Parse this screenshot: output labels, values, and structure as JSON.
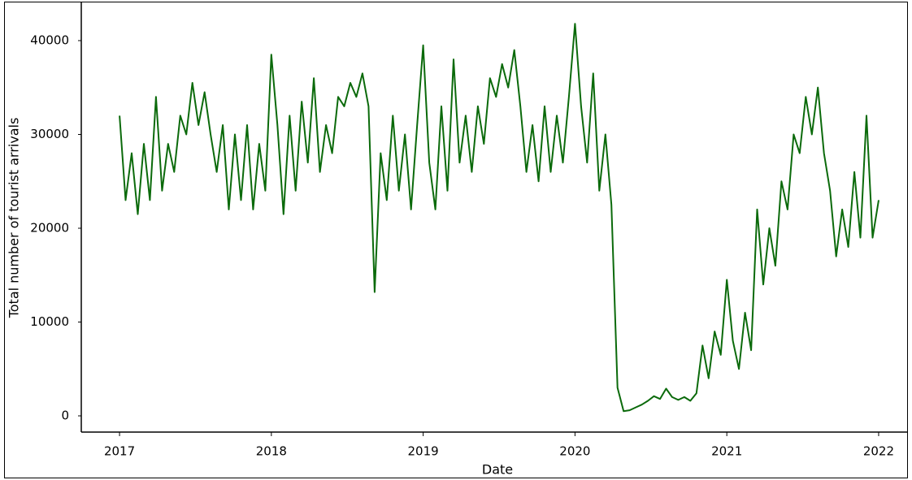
{
  "chart_data": {
    "type": "line",
    "xlabel": "Date",
    "ylabel": "Total number of tourist arrivals",
    "x": [
      2017.0,
      2017.04,
      2017.08,
      2017.12,
      2017.16,
      2017.2,
      2017.24,
      2017.28,
      2017.32,
      2017.36,
      2017.4,
      2017.44,
      2017.48,
      2017.52,
      2017.56,
      2017.6,
      2017.64,
      2017.68,
      2017.72,
      2017.76,
      2017.8,
      2017.84,
      2017.88,
      2017.92,
      2017.96,
      2018.0,
      2018.04,
      2018.08,
      2018.12,
      2018.16,
      2018.2,
      2018.24,
      2018.28,
      2018.32,
      2018.36,
      2018.4,
      2018.44,
      2018.48,
      2018.52,
      2018.56,
      2018.6,
      2018.64,
      2018.68,
      2018.72,
      2018.76,
      2018.8,
      2018.84,
      2018.88,
      2018.92,
      2018.96,
      2019.0,
      2019.04,
      2019.08,
      2019.12,
      2019.16,
      2019.2,
      2019.24,
      2019.28,
      2019.32,
      2019.36,
      2019.4,
      2019.44,
      2019.48,
      2019.52,
      2019.56,
      2019.6,
      2019.64,
      2019.68,
      2019.72,
      2019.76,
      2019.8,
      2019.84,
      2019.88,
      2019.92,
      2019.96,
      2020.0,
      2020.04,
      2020.08,
      2020.12,
      2020.16,
      2020.2,
      2020.24,
      2020.28,
      2020.32,
      2020.36,
      2020.4,
      2020.44,
      2020.48,
      2020.52,
      2020.56,
      2020.6,
      2020.64,
      2020.68,
      2020.72,
      2020.76,
      2020.8,
      2020.84,
      2020.88,
      2020.92,
      2020.96,
      2021.0,
      2021.04,
      2021.08,
      2021.12,
      2021.16,
      2021.2,
      2021.24,
      2021.28,
      2021.32,
      2021.36,
      2021.4,
      2021.44,
      2021.48,
      2021.52,
      2021.56,
      2021.6,
      2021.64,
      2021.68,
      2021.72,
      2021.76,
      2021.8,
      2021.84,
      2021.88,
      2021.92,
      2021.96,
      2022.0
    ],
    "series": [
      {
        "color": "#0b6a0b",
        "values": [
          32000,
          23000,
          28000,
          21500,
          29000,
          23000,
          34000,
          24000,
          29000,
          26000,
          32000,
          30000,
          35500,
          31000,
          34500,
          30000,
          26000,
          31000,
          22000,
          30000,
          23000,
          31000,
          22000,
          29000,
          24000,
          38500,
          31000,
          21500,
          32000,
          24000,
          33500,
          27000,
          36000,
          26000,
          31000,
          28000,
          34000,
          33000,
          35500,
          34000,
          36500,
          33000,
          13200,
          28000,
          23000,
          32000,
          24000,
          30000,
          22000,
          31000,
          39500,
          27000,
          22000,
          33000,
          24000,
          38000,
          27000,
          32000,
          26000,
          33000,
          29000,
          36000,
          34000,
          37500,
          35000,
          39000,
          33000,
          26000,
          31000,
          25000,
          33000,
          26000,
          32000,
          27000,
          34000,
          41800,
          33000,
          27000,
          36500,
          24000,
          30000,
          22500,
          3000,
          500,
          600,
          900,
          1200,
          1600,
          2100,
          1800,
          2900,
          2000,
          1700,
          2000,
          1600,
          2400,
          7500,
          4000,
          9000,
          6500,
          14500,
          8000,
          5000,
          11000,
          7000,
          22000,
          14000,
          20000,
          16000,
          25000,
          22000,
          30000,
          28000,
          34000,
          30000,
          35000,
          28000,
          24000,
          17000,
          22000,
          18000,
          26000,
          19000,
          32000,
          19000,
          23000
        ]
      }
    ],
    "xlim": [
      2016.748,
      2022.193
    ],
    "xticks": [
      2017,
      2018,
      2019,
      2020,
      2021,
      2022
    ],
    "ylim": [
      -1730,
      44070
    ],
    "yticks": [
      0,
      10000,
      20000,
      30000,
      40000
    ]
  }
}
